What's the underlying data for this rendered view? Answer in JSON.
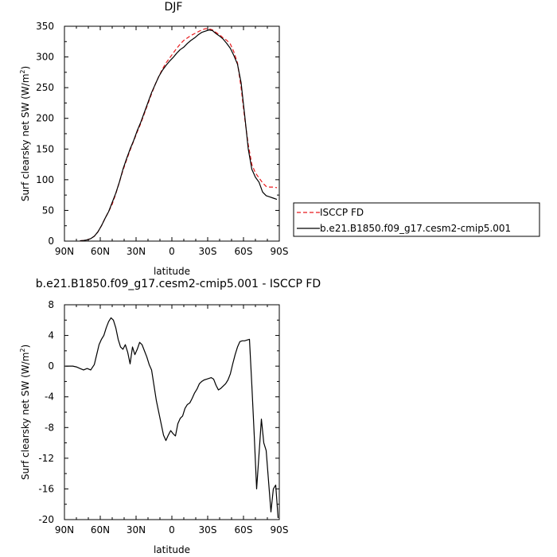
{
  "chart_data": [
    {
      "type": "line",
      "title": "DJF",
      "xlabel": "latitude",
      "ylabel": "Surf clearsky net SW (W/m²)",
      "ylabel_main": "Surf clearsky net SW (W/m",
      "ylabel_sup": "2",
      "ylabel_close": ")",
      "xlim": [
        -90,
        90
      ],
      "ylim": [
        0,
        350
      ],
      "x_ticks": [
        -90,
        -60,
        -30,
        0,
        30,
        60,
        90
      ],
      "x_tick_labels": [
        "90N",
        "60N",
        "30N",
        "0",
        "30S",
        "60S",
        "90S"
      ],
      "y_ticks": [
        0,
        50,
        100,
        150,
        200,
        250,
        300,
        350
      ],
      "y_tick_labels": [
        "0",
        "50",
        "100",
        "150",
        "200",
        "250",
        "300",
        "350"
      ],
      "grid": false,
      "legend": {
        "placement": "right",
        "entries": [
          "ISCCP FD",
          "b.e21.B1850.f09_g17.cesm2-cmip5.001"
        ]
      },
      "series": [
        {
          "name": "ISCCP FD",
          "color": "#e8191c",
          "dash": true,
          "x": [
            -77,
            -74,
            -71,
            -68,
            -65,
            -62,
            -59,
            -56,
            -53,
            -50,
            -47,
            -44,
            -41,
            -38,
            -35,
            -32,
            -29,
            -26,
            -23,
            -20,
            -17,
            -14,
            -11,
            -8,
            -5,
            -2,
            1,
            4,
            7,
            10,
            13,
            16,
            19,
            22,
            25,
            28,
            31,
            34,
            37,
            40,
            43,
            46,
            49,
            52,
            55,
            58,
            61,
            64,
            67,
            70,
            73,
            76,
            79,
            82,
            85,
            88
          ],
          "y": [
            0.5,
            1,
            2,
            4,
            8,
            15,
            25,
            37,
            48,
            60,
            77,
            96,
            115,
            132,
            148,
            163,
            178,
            192,
            208,
            224,
            240,
            255,
            268,
            280,
            290,
            298,
            306,
            314,
            321,
            327,
            331,
            335,
            338,
            341,
            344,
            346,
            346,
            344,
            340,
            336,
            331,
            327,
            321,
            308,
            290,
            250,
            200,
            157,
            125,
            111,
            103,
            95,
            89,
            88,
            88,
            87
          ]
        },
        {
          "name": "b.e21.B1850.f09_g17.cesm2-cmip5.001",
          "color": "#000000",
          "dash": false,
          "x": [
            -77,
            -74,
            -71,
            -68,
            -65,
            -62,
            -59,
            -56,
            -53,
            -50,
            -47,
            -44,
            -41,
            -38,
            -35,
            -32,
            -29,
            -26,
            -23,
            -20,
            -17,
            -14,
            -11,
            -8,
            -5,
            -2,
            1,
            4,
            7,
            10,
            13,
            16,
            19,
            22,
            25,
            28,
            31,
            34,
            37,
            40,
            43,
            46,
            49,
            52,
            55,
            58,
            61,
            64,
            67,
            70,
            73,
            76,
            79,
            82,
            85,
            88
          ],
          "y": [
            0.5,
            1,
            2,
            4,
            8,
            15,
            25,
            37,
            48,
            63,
            78,
            96,
            117,
            134,
            150,
            164,
            180,
            194,
            210,
            226,
            242,
            255,
            268,
            278,
            286,
            293,
            299,
            306,
            312,
            316,
            322,
            327,
            331,
            336,
            340,
            342,
            344,
            343,
            338,
            334,
            329,
            322,
            314,
            302,
            288,
            258,
            205,
            150,
            117,
            104,
            96,
            80,
            74,
            72,
            70,
            68
          ]
        }
      ]
    },
    {
      "type": "line",
      "title": "b.e21.B1850.f09_g17.cesm2-cmip5.001 - ISCCP FD",
      "xlabel": "latitude",
      "ylabel": "Surf clearsky net SW (W/m²)",
      "ylabel_main": "Surf clearsky net SW (W/m",
      "ylabel_sup": "2",
      "ylabel_close": ")",
      "xlim": [
        -90,
        90
      ],
      "ylim": [
        -20,
        8
      ],
      "x_ticks": [
        -90,
        -60,
        -30,
        0,
        30,
        60,
        90
      ],
      "x_tick_labels": [
        "90N",
        "60N",
        "30N",
        "0",
        "30S",
        "60S",
        "90S"
      ],
      "y_ticks": [
        -20,
        -16,
        -12,
        -8,
        -4,
        0,
        4,
        8
      ],
      "y_tick_labels": [
        "-20",
        "-16",
        "-12",
        "-8",
        "-4",
        "0",
        "4",
        "8"
      ],
      "grid": false,
      "series": [
        {
          "name": "",
          "color": "#000000",
          "dash": false,
          "x": [
            -89,
            -86,
            -83,
            -80,
            -77,
            -74,
            -71,
            -68,
            -65,
            -63,
            -61,
            -59,
            -57,
            -55,
            -53,
            -51,
            -49,
            -47,
            -45,
            -43,
            -41,
            -39,
            -37,
            -35,
            -33,
            -31,
            -29,
            -27,
            -25,
            -23,
            -21,
            -19,
            -17,
            -15,
            -13,
            -11,
            -9,
            -7,
            -5,
            -3,
            -1,
            1,
            3,
            5,
            7,
            9,
            11,
            13,
            15,
            17,
            19,
            21,
            23,
            25,
            27,
            29,
            31,
            33,
            35,
            37,
            39,
            41,
            43,
            45,
            47,
            49,
            51,
            53,
            55,
            57,
            59,
            61,
            63,
            65,
            67,
            69,
            71,
            73,
            75,
            77,
            79,
            81,
            83,
            85,
            87,
            89
          ],
          "y": [
            0,
            0,
            0,
            -0.1,
            -0.3,
            -0.5,
            -0.3,
            -0.5,
            0.2,
            1.5,
            2.8,
            3.5,
            4,
            5,
            5.8,
            6.3,
            6,
            5,
            3.5,
            2.5,
            2.2,
            2.8,
            1.8,
            0.3,
            2.5,
            1.5,
            2.2,
            3.1,
            2.8,
            2,
            1.2,
            0.2,
            -0.5,
            -2.5,
            -4.5,
            -6,
            -7.5,
            -9,
            -9.7,
            -9,
            -8.4,
            -8.8,
            -9.1,
            -7.5,
            -6.8,
            -6.5,
            -5.5,
            -5,
            -4.8,
            -4.2,
            -3.5,
            -3,
            -2.3,
            -2,
            -1.8,
            -1.7,
            -1.6,
            -1.5,
            -1.7,
            -2.5,
            -3.1,
            -2.9,
            -2.6,
            -2.3,
            -1.8,
            -1,
            0.3,
            1.5,
            2.5,
            3.2,
            3.3,
            3.3,
            3.4,
            3.5,
            -2.5,
            -9,
            -16,
            -11.5,
            -6.9,
            -10,
            -11,
            -15,
            -19,
            -16,
            -15.5,
            -19.8
          ]
        }
      ]
    }
  ]
}
